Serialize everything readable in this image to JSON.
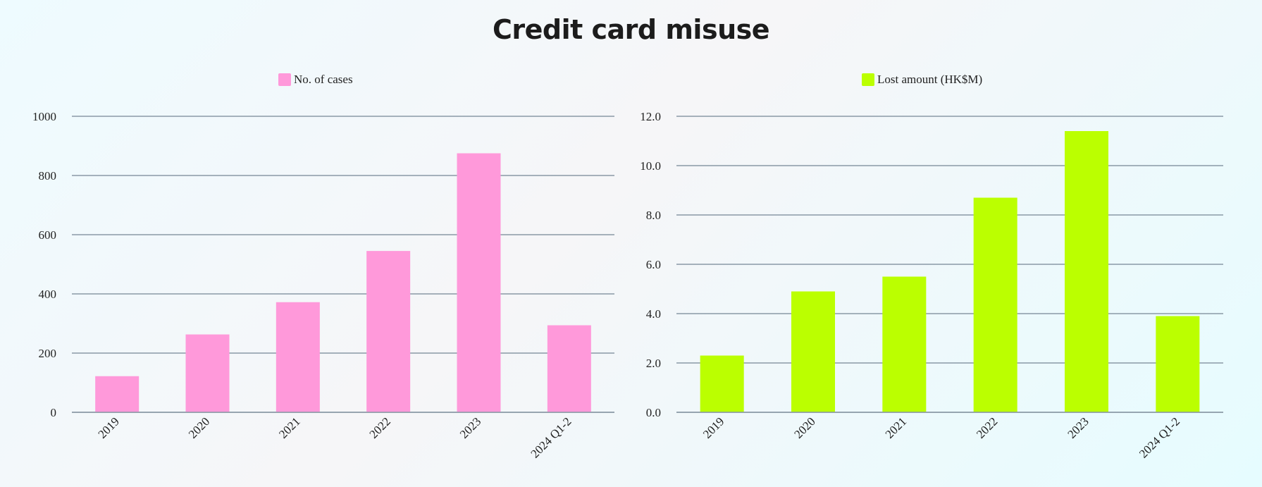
{
  "page": {
    "title": "Credit card misuse"
  },
  "chart_data": [
    {
      "type": "bar",
      "categories": [
        "2019",
        "2020",
        "2021",
        "2022",
        "2023",
        "2024 Q1-2"
      ],
      "series": [
        {
          "name": "No. of cases",
          "values": [
            122,
            263,
            372,
            545,
            875,
            294
          ],
          "color": "#ff99da"
        }
      ],
      "ylim": [
        0,
        1000
      ],
      "yticks": [
        0,
        200,
        400,
        600,
        800,
        1000
      ],
      "ytick_labels": [
        "0",
        "200",
        "400",
        "600",
        "800",
        "1000"
      ],
      "grid": true,
      "legend": "top-center"
    },
    {
      "type": "bar",
      "categories": [
        "2019",
        "2020",
        "2021",
        "2022",
        "2023",
        "2024 Q1-2"
      ],
      "series": [
        {
          "name": "Lost amount (HK$M)",
          "values": [
            2.3,
            4.9,
            5.5,
            8.7,
            11.4,
            3.9
          ],
          "color": "#bbff00"
        }
      ],
      "ylim": [
        0,
        12
      ],
      "yticks": [
        0,
        2,
        4,
        6,
        8,
        10,
        12
      ],
      "ytick_labels": [
        "0.0",
        "2.0",
        "4.0",
        "6.0",
        "8.0",
        "10.0",
        "12.0"
      ],
      "grid": true,
      "legend": "top-center"
    }
  ]
}
